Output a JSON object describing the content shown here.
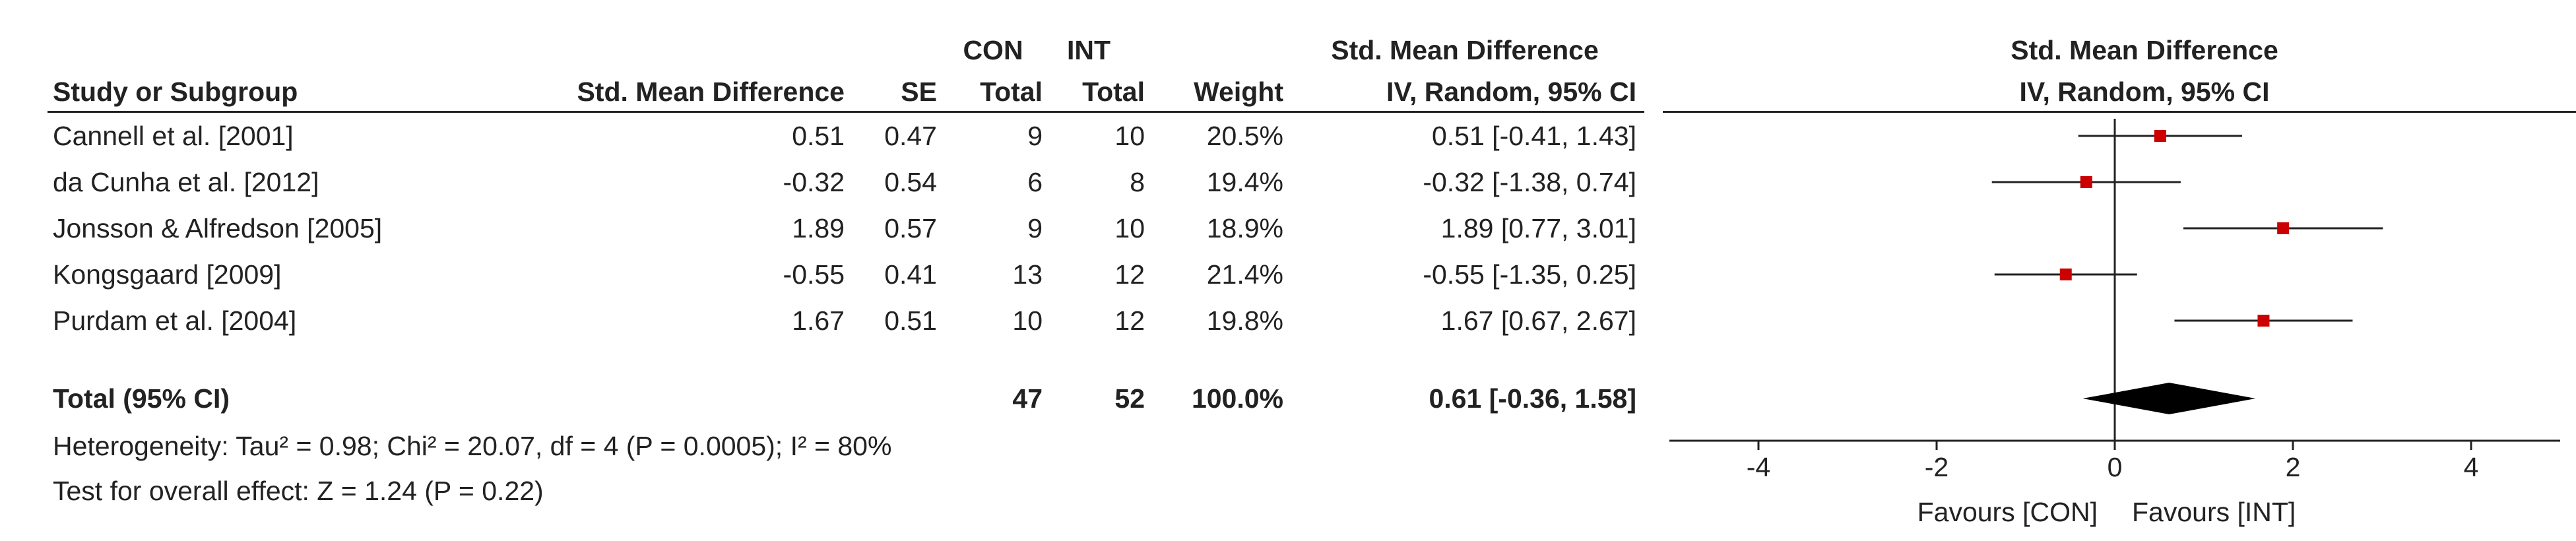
{
  "headers": {
    "study": "Study or Subgroup",
    "smd": "Std. Mean Difference",
    "se": "SE",
    "con_top": "CON",
    "con_bottom": "Total",
    "int_top": "INT",
    "int_bottom": "Total",
    "weight": "Weight",
    "ci_top": "Std. Mean Difference",
    "ci_bottom": "IV, Random, 95% CI",
    "plot_top": "Std. Mean Difference",
    "plot_bottom": "IV, Random, 95% CI"
  },
  "studies": [
    {
      "name": "Cannell et al. [2001]",
      "smd": "0.51",
      "se": "0.47",
      "con": "9",
      "int": "10",
      "weight": "20.5%",
      "ci": "0.51 [-0.41, 1.43]"
    },
    {
      "name": "da Cunha et al. [2012]",
      "smd": "-0.32",
      "se": "0.54",
      "con": "6",
      "int": "8",
      "weight": "19.4%",
      "ci": "-0.32 [-1.38, 0.74]"
    },
    {
      "name": "Jonsson & Alfredson [2005]",
      "smd": "1.89",
      "se": "0.57",
      "con": "9",
      "int": "10",
      "weight": "18.9%",
      "ci": "1.89 [0.77, 3.01]"
    },
    {
      "name": "Kongsgaard [2009]",
      "smd": "-0.55",
      "se": "0.41",
      "con": "13",
      "int": "12",
      "weight": "21.4%",
      "ci": "-0.55 [-1.35, 0.25]"
    },
    {
      "name": "Purdam et al. [2004]",
      "smd": "1.67",
      "se": "0.51",
      "con": "10",
      "int": "12",
      "weight": "19.8%",
      "ci": "1.67 [0.67, 2.67]"
    }
  ],
  "total": {
    "name": "Total (95% CI)",
    "con": "47",
    "int": "52",
    "weight": "100.0%",
    "ci": "0.61 [-0.36, 1.58]"
  },
  "heterogeneity": "Heterogeneity: Tau² = 0.98; Chi² = 20.07, df = 4 (P = 0.0005); I² = 80%",
  "overall_effect": "Test for overall effect: Z = 1.24 (P = 0.22)",
  "favours_left": "Favours [CON]",
  "favours_right": "Favours [INT]",
  "colors": {
    "study_marker": "#cc0000",
    "diamond": "#000000",
    "text": "#222222"
  },
  "chart_data": {
    "type": "forest",
    "xlim": [
      -5,
      5
    ],
    "xticks": [
      -4,
      -2,
      0,
      2,
      4
    ],
    "points": [
      {
        "name": "Cannell et al. [2001]",
        "est": 0.51,
        "lo": -0.41,
        "hi": 1.43
      },
      {
        "name": "da Cunha et al. [2012]",
        "est": -0.32,
        "lo": -1.38,
        "hi": 0.74
      },
      {
        "name": "Jonsson & Alfredson [2005]",
        "est": 1.89,
        "lo": 0.77,
        "hi": 3.01
      },
      {
        "name": "Kongsgaard [2009]",
        "est": -0.55,
        "lo": -1.35,
        "hi": 0.25
      },
      {
        "name": "Purdam et al. [2004]",
        "est": 1.67,
        "lo": 0.67,
        "hi": 2.67
      }
    ],
    "pooled": {
      "est": 0.61,
      "lo": -0.36,
      "hi": 1.58
    }
  }
}
